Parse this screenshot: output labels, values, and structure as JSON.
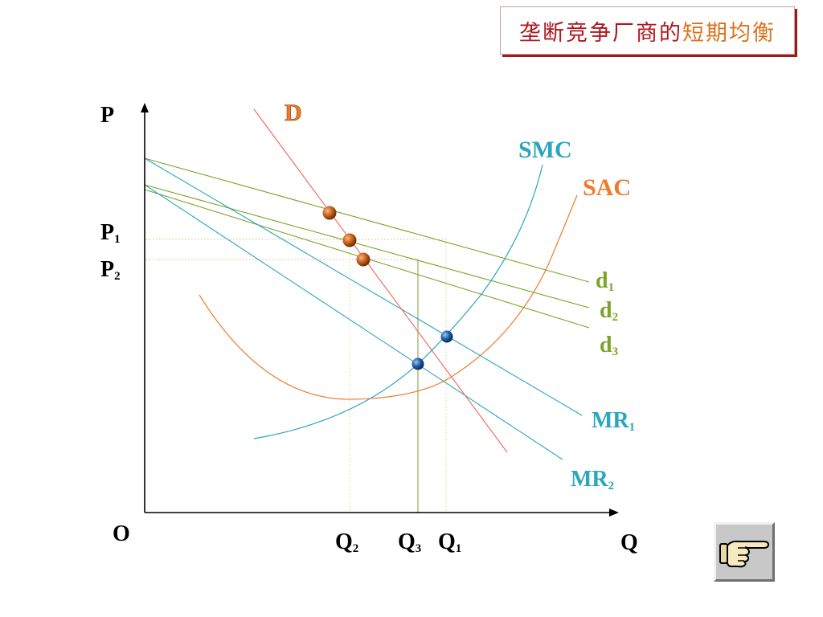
{
  "title": {
    "part1": "垄断竞争厂商的",
    "part2": "短期均衡"
  },
  "axes": {
    "origin": "O",
    "y_axis": "P",
    "x_axis": "Q"
  },
  "price_labels": [
    {
      "base": "P",
      "sub": "1"
    },
    {
      "base": "P",
      "sub": "2"
    }
  ],
  "quantity_labels": [
    {
      "base": "Q",
      "sub": "2"
    },
    {
      "base": "Q",
      "sub": "3"
    },
    {
      "base": "Q",
      "sub": "1"
    }
  ],
  "curve_labels": {
    "D": {
      "base": "D",
      "sub": ""
    },
    "SMC": {
      "base": "SMC",
      "sub": ""
    },
    "SAC": {
      "base": "SAC",
      "sub": ""
    },
    "d1": {
      "base": "d",
      "sub": "1"
    },
    "d2": {
      "base": "d",
      "sub": "2"
    },
    "d3": {
      "base": "d",
      "sub": "3"
    },
    "MR1": {
      "base": "MR",
      "sub": "1"
    },
    "MR2": {
      "base": "MR",
      "sub": "2"
    }
  },
  "colors": {
    "title_primary": "#b0161e",
    "title_accent": "#d9741c",
    "D": "#f0645a",
    "SAC": "#ee7b2a",
    "SMC": "#2aa6be",
    "d_lines": "#7da328",
    "MR_lines": "#2aa6be",
    "orange_points": "#c8601a",
    "blue_points": "#1f5fa8"
  },
  "nav": {
    "next_icon": "pointing-hand-icon"
  }
}
